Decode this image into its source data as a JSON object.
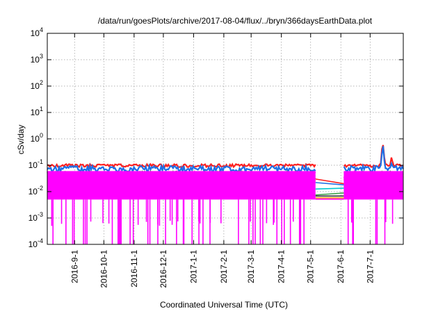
{
  "chart_data": {
    "type": "line",
    "title": "/data/run/goesPlots/archive/2017-08-04/flux/../bryn/366daysEarthData.plot",
    "xlabel": "Coordinated Universal Time (UTC)",
    "ylabel": "cSv/day",
    "yscale": "log",
    "ylim": [
      0.0001,
      10000
    ],
    "y_ticks": [
      {
        "exp": "-4",
        "value": 0.0001
      },
      {
        "exp": "-3",
        "value": 0.001
      },
      {
        "exp": "-2",
        "value": 0.01
      },
      {
        "exp": "-1",
        "value": 0.1
      },
      {
        "exp": "0",
        "value": 1
      },
      {
        "exp": "1",
        "value": 10
      },
      {
        "exp": "2",
        "value": 100
      },
      {
        "exp": "3",
        "value": 1000
      },
      {
        "exp": "4",
        "value": 10000
      }
    ],
    "xlim": [
      "2016-08-04",
      "2017-08-04"
    ],
    "x_tick_labels": [
      "2016-9-1",
      "2016-10-1",
      "2016-11-1",
      "2016-12-1",
      "2017-1-1",
      "2017-2-1",
      "2017-3-1",
      "2017-4-1",
      "2017-5-1",
      "2017-6-1",
      "2017-7-1"
    ],
    "x_tick_dates": [
      "2016-09-01",
      "2016-10-01",
      "2016-11-01",
      "2016-12-01",
      "2017-01-01",
      "2017-02-01",
      "2017-03-01",
      "2017-04-01",
      "2017-05-01",
      "2017-06-01",
      "2017-07-01"
    ],
    "grid": true,
    "legend": "none",
    "data_gap": [
      "2017-05-06",
      "2017-06-04"
    ],
    "series": [
      {
        "color": "#ff2020",
        "values": [
          [
            0.085,
            0.11
          ]
        ],
        "gap_start": 0.03,
        "gap_end": 0.02
      },
      {
        "color": "#1e6fe6",
        "values": [
          [
            0.055,
            0.095
          ]
        ],
        "gap_start": 0.022,
        "gap_end": 0.018
      },
      {
        "color": "#3aa04a",
        "values": [
          [
            0.04,
            0.06
          ]
        ],
        "gap_start": 0.0075,
        "gap_end": 0.0088
      },
      {
        "color": "#00c8d0",
        "values": [
          [
            0.03,
            0.05
          ]
        ],
        "gap_start": 0.0125,
        "gap_end": 0.0135
      },
      {
        "color": "#ff8c00",
        "values": [
          [
            0.02,
            0.04
          ]
        ],
        "gap_start": 0.0058,
        "gap_end": 0.0058
      },
      {
        "color": "#222222",
        "values": [
          [
            0.02,
            0.035
          ]
        ],
        "gap_start": 0.0068,
        "gap_end": 0.0068
      },
      {
        "color": "#ff00ff",
        "values": [
          [
            0.005,
            0.06
          ]
        ],
        "dropouts_to": 0.0001,
        "gap_start": 0.0052,
        "gap_end": 0.0052
      }
    ],
    "events": [
      {
        "date": "2017-07-14",
        "peak": 0.7
      },
      {
        "date": "2017-07-23",
        "peak": 0.2
      }
    ]
  }
}
